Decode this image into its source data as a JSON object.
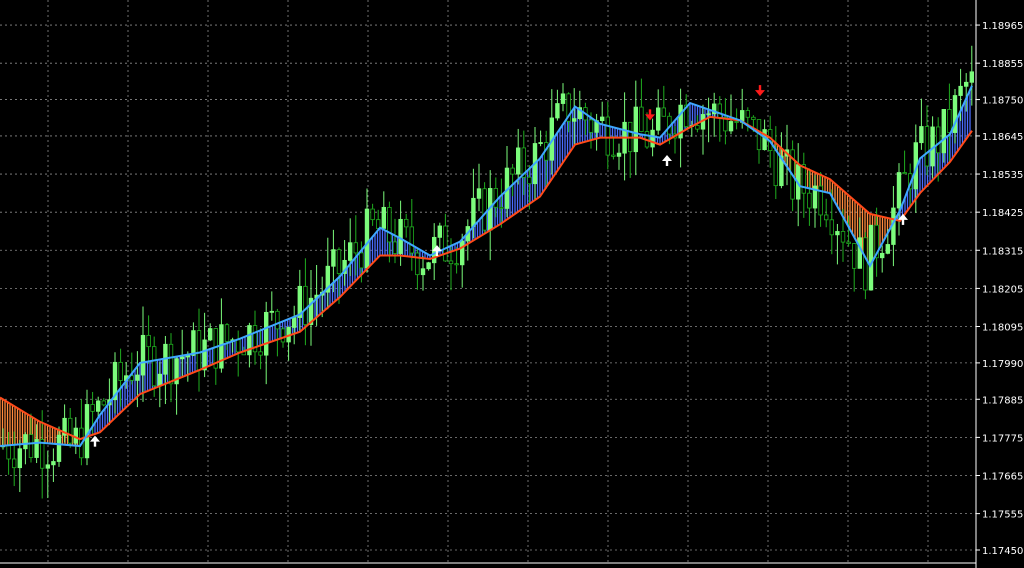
{
  "colors": {
    "background": "#000000",
    "grid": "#8c8c8c",
    "axis": "#ffffff",
    "bull_candle": "#7CFC7C",
    "bear_candle": "#1fae1f",
    "fast_line": "#3ea7ff",
    "slow_line": "#ff4a1a",
    "bull_fill": "#4a6cff",
    "bear_fill": "#ff8a3c",
    "arrow_up": "#ffffff",
    "arrow_down": "#ff1a1a"
  },
  "chart_data": {
    "type": "candlestick",
    "ylim": [
      1.1745,
      1.1902
    ],
    "ylabels": [
      "1.18965",
      "1.18855",
      "1.18750",
      "1.18645",
      "1.18535",
      "1.18425",
      "1.18315",
      "1.18205",
      "1.18095",
      "1.17990",
      "1.17885",
      "1.17775",
      "1.17665",
      "1.17555",
      "1.17450"
    ],
    "grid": true,
    "y_axis_position": "right",
    "indicator": "two moving averages with filled band; blue band when fast above slow, orange band when fast below slow",
    "fast_ma": [
      [
        0,
        1.1775
      ],
      [
        40,
        1.1776
      ],
      [
        80,
        1.1775
      ],
      [
        100,
        1.1784
      ],
      [
        140,
        1.1799
      ],
      [
        200,
        1.1802
      ],
      [
        240,
        1.1806
      ],
      [
        300,
        1.1813
      ],
      [
        340,
        1.1824
      ],
      [
        380,
        1.1838
      ],
      [
        400,
        1.1835
      ],
      [
        430,
        1.183
      ],
      [
        460,
        1.1834
      ],
      [
        500,
        1.1847
      ],
      [
        540,
        1.1858
      ],
      [
        575,
        1.1873
      ],
      [
        600,
        1.1868
      ],
      [
        640,
        1.1865
      ],
      [
        660,
        1.1864
      ],
      [
        690,
        1.1874
      ],
      [
        710,
        1.1872
      ],
      [
        740,
        1.1869
      ],
      [
        770,
        1.1863
      ],
      [
        800,
        1.185
      ],
      [
        830,
        1.1848
      ],
      [
        870,
        1.1827
      ],
      [
        900,
        1.1843
      ],
      [
        920,
        1.1858
      ],
      [
        950,
        1.1865
      ],
      [
        972,
        1.1879
      ]
    ],
    "slow_ma": [
      [
        0,
        1.1789
      ],
      [
        40,
        1.1782
      ],
      [
        80,
        1.1777
      ],
      [
        100,
        1.1779
      ],
      [
        140,
        1.179
      ],
      [
        200,
        1.1797
      ],
      [
        240,
        1.1802
      ],
      [
        300,
        1.1808
      ],
      [
        340,
        1.1818
      ],
      [
        380,
        1.183
      ],
      [
        400,
        1.183
      ],
      [
        430,
        1.1829
      ],
      [
        460,
        1.1832
      ],
      [
        500,
        1.1839
      ],
      [
        540,
        1.1847
      ],
      [
        575,
        1.1862
      ],
      [
        600,
        1.1864
      ],
      [
        640,
        1.1864
      ],
      [
        660,
        1.1862
      ],
      [
        690,
        1.1867
      ],
      [
        710,
        1.187
      ],
      [
        740,
        1.1869
      ],
      [
        770,
        1.1864
      ],
      [
        800,
        1.1856
      ],
      [
        830,
        1.1852
      ],
      [
        870,
        1.1842
      ],
      [
        900,
        1.184
      ],
      [
        920,
        1.1848
      ],
      [
        950,
        1.1857
      ],
      [
        972,
        1.1866
      ]
    ],
    "arrows": [
      {
        "x": 95,
        "price": 1.1778,
        "direction": "up"
      },
      {
        "x": 437,
        "price": 1.1833,
        "direction": "up"
      },
      {
        "x": 650,
        "price": 1.1869,
        "direction": "down"
      },
      {
        "x": 667,
        "price": 1.1859,
        "direction": "up"
      },
      {
        "x": 760,
        "price": 1.1876,
        "direction": "down"
      },
      {
        "x": 903,
        "price": 1.1842,
        "direction": "up"
      }
    ]
  }
}
